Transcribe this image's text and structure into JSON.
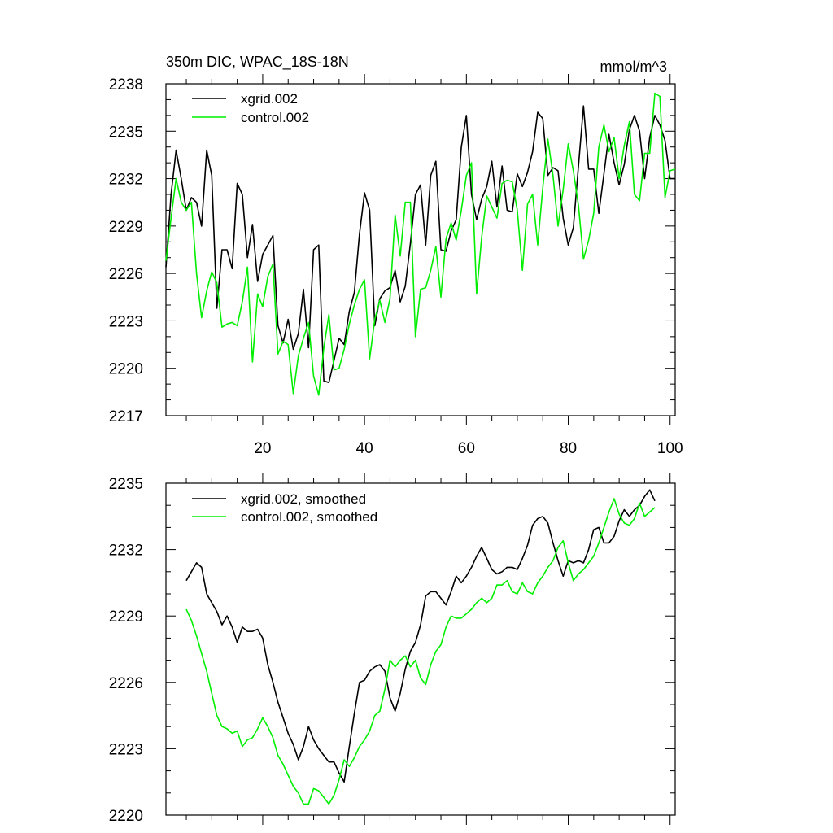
{
  "title": "350m DIC, WPAC_18S-18N",
  "units": "mmol/m^3",
  "colors": {
    "black": "#000000",
    "green": "#00ee00"
  },
  "chart_data": [
    {
      "type": "line",
      "title": "350m DIC, WPAC_18S-18N",
      "xlabel": "",
      "ylabel": "",
      "xlim": [
        1,
        101
      ],
      "ylim": [
        2217,
        2238
      ],
      "xticks": [
        20,
        40,
        60,
        80,
        100
      ],
      "xtick_labels": [
        "20",
        "40",
        "60",
        "80",
        "100"
      ],
      "yticks": [
        2217,
        2220,
        2223,
        2226,
        2229,
        2232,
        2235,
        2238
      ],
      "ytick_labels": [
        "2217",
        "2220",
        "2223",
        "2226",
        "2229",
        "2232",
        "2235",
        "2238"
      ],
      "legend_position": "top-left",
      "x": [
        1,
        2,
        3,
        4,
        5,
        6,
        7,
        8,
        9,
        10,
        11,
        12,
        13,
        14,
        15,
        16,
        17,
        18,
        19,
        20,
        21,
        22,
        23,
        24,
        25,
        26,
        27,
        28,
        29,
        30,
        31,
        32,
        33,
        34,
        35,
        36,
        37,
        38,
        39,
        40,
        41,
        42,
        43,
        44,
        45,
        46,
        47,
        48,
        49,
        50,
        51,
        52,
        53,
        54,
        55,
        56,
        57,
        58,
        59,
        60,
        61,
        62,
        63,
        64,
        65,
        66,
        67,
        68,
        69,
        70,
        71,
        72,
        73,
        74,
        75,
        76,
        77,
        78,
        79,
        80,
        81,
        82,
        83,
        84,
        85,
        86,
        87,
        88,
        89,
        90,
        91,
        92,
        93,
        94,
        95,
        96,
        97,
        98,
        99,
        100,
        101
      ],
      "series": [
        {
          "name": "xgrid.002",
          "color": "#000000",
          "values": [
            2226.4,
            2231.0,
            2233.8,
            2232.0,
            2230.0,
            2230.8,
            2230.5,
            2229.0,
            2233.8,
            2232.2,
            2223.8,
            2227.5,
            2227.5,
            2226.3,
            2231.7,
            2231.0,
            2227.0,
            2229.1,
            2225.5,
            2227.2,
            2227.8,
            2228.4,
            2222.7,
            2221.6,
            2223.1,
            2221.2,
            2222.2,
            2225.0,
            2221.3,
            2227.5,
            2227.8,
            2219.2,
            2219.1,
            2220.5,
            2221.9,
            2221.5,
            2223.6,
            2224.8,
            2228.5,
            2231.1,
            2230.0,
            2222.7,
            2224.4,
            2224.9,
            2225.1,
            2226.2,
            2224.2,
            2225.2,
            2227.9,
            2231.0,
            2231.6,
            2227.8,
            2232.2,
            2233.1,
            2227.5,
            2227.4,
            2228.7,
            2229.4,
            2234.0,
            2236.0,
            2231.0,
            2229.4,
            2230.7,
            2231.5,
            2233.1,
            2230.2,
            2232.8,
            2230.0,
            2229.9,
            2232.3,
            2231.5,
            2232.4,
            2233.7,
            2236.2,
            2235.8,
            2232.2,
            2232.7,
            2232.5,
            2229.5,
            2227.8,
            2228.9,
            2232.8,
            2236.6,
            2232.6,
            2232.6,
            2229.8,
            2232.3,
            2234.8,
            2233.0,
            2231.6,
            2232.9,
            2235.1,
            2236.0,
            2235.0,
            2232.0,
            2234.6,
            2236.0,
            2235.4,
            2234.4,
            2232.0,
            2232.0
          ]
        },
        {
          "name": "control.002",
          "color": "#00ee00",
          "values": [
            2226.8,
            2229.5,
            2232.0,
            2230.5,
            2230.0,
            2230.5,
            2226.0,
            2223.2,
            2224.9,
            2226.1,
            2225.4,
            2222.6,
            2222.8,
            2222.9,
            2222.7,
            2224.2,
            2226.4,
            2220.4,
            2224.7,
            2223.9,
            2225.8,
            2226.6,
            2220.9,
            2221.7,
            2221.5,
            2218.4,
            2220.8,
            2221.9,
            2222.9,
            2219.5,
            2218.3,
            2221.3,
            2223.4,
            2219.9,
            2220.0,
            2221.2,
            2222.8,
            2224.0,
            2225.0,
            2225.6,
            2220.6,
            2223.1,
            2224.3,
            2222.9,
            2224.4,
            2229.7,
            2227.1,
            2230.5,
            2230.5,
            2222.0,
            2225.0,
            2225.1,
            2226.2,
            2227.7,
            2224.5,
            2228.2,
            2229.2,
            2228.1,
            2230.0,
            2232.2,
            2233.0,
            2224.7,
            2228.3,
            2230.9,
            2230.2,
            2229.5,
            2231.7,
            2231.9,
            2231.8,
            2230.0,
            2226.2,
            2230.4,
            2231.0,
            2227.8,
            2231.4,
            2234.5,
            2232.2,
            2229.0,
            2231.3,
            2234.2,
            2232.5,
            2230.3,
            2226.9,
            2228.1,
            2229.8,
            2234.0,
            2235.4,
            2233.7,
            2234.6,
            2232.0,
            2234.1,
            2235.6,
            2231.0,
            2230.6,
            2233.6,
            2233.6,
            2237.4,
            2237.2,
            2230.8,
            2232.5,
            2232.6
          ]
        }
      ]
    },
    {
      "type": "line",
      "title": "",
      "xlabel": "",
      "ylabel": "",
      "xlim": [
        1,
        101
      ],
      "ylim": [
        2220,
        2235
      ],
      "xticks": [
        20,
        40,
        60,
        80,
        100
      ],
      "xtick_labels": [],
      "yticks": [
        2220,
        2223,
        2226,
        2229,
        2232,
        2235
      ],
      "ytick_labels": [
        "2220",
        "2223",
        "2226",
        "2229",
        "2232",
        "2235"
      ],
      "legend_position": "top-left",
      "x": [
        5,
        6,
        7,
        8,
        9,
        10,
        11,
        12,
        13,
        14,
        15,
        16,
        17,
        18,
        19,
        20,
        21,
        22,
        23,
        24,
        25,
        26,
        27,
        28,
        29,
        30,
        31,
        32,
        33,
        34,
        35,
        36,
        37,
        38,
        39,
        40,
        41,
        42,
        43,
        44,
        45,
        46,
        47,
        48,
        49,
        50,
        51,
        52,
        53,
        54,
        55,
        56,
        57,
        58,
        59,
        60,
        61,
        62,
        63,
        64,
        65,
        66,
        67,
        68,
        69,
        70,
        71,
        72,
        73,
        74,
        75,
        76,
        77,
        78,
        79,
        80,
        81,
        82,
        83,
        84,
        85,
        86,
        87,
        88,
        89,
        90,
        91,
        92,
        93,
        94,
        95,
        96,
        97
      ],
      "series": [
        {
          "name": "xgrid.002, smoothed",
          "color": "#000000",
          "values": [
            2230.6,
            2231.0,
            2231.4,
            2231.2,
            2230.0,
            2229.6,
            2229.2,
            2228.6,
            2229.0,
            2228.5,
            2227.8,
            2228.5,
            2228.3,
            2228.3,
            2228.4,
            2228.0,
            2226.8,
            2226.0,
            2225.1,
            2224.4,
            2223.7,
            2223.2,
            2222.5,
            2223.1,
            2224.0,
            2223.4,
            2223.0,
            2222.7,
            2222.4,
            2222.4,
            2221.9,
            2221.5,
            2223.1,
            2224.6,
            2226.0,
            2226.1,
            2226.5,
            2226.7,
            2226.8,
            2226.5,
            2225.3,
            2224.7,
            2225.5,
            2226.6,
            2227.4,
            2227.8,
            2228.6,
            2229.9,
            2230.1,
            2230.1,
            2229.8,
            2229.5,
            2230.1,
            2230.8,
            2230.5,
            2230.8,
            2231.2,
            2231.7,
            2232.1,
            2231.6,
            2231.1,
            2230.9,
            2231.0,
            2231.2,
            2231.2,
            2231.1,
            2231.6,
            2232.2,
            2233.1,
            2233.4,
            2233.5,
            2233.2,
            2232.3,
            2231.5,
            2230.8,
            2231.5,
            2231.4,
            2231.5,
            2231.4,
            2232.0,
            2232.9,
            2233.0,
            2232.3,
            2232.3,
            2232.6,
            2233.3,
            2233.8,
            2233.5,
            2233.8,
            2234.0,
            2234.4,
            2234.7,
            2234.2
          ]
        },
        {
          "name": "control.002, smoothed",
          "color": "#00ee00",
          "values": [
            2229.3,
            2228.8,
            2228.1,
            2227.3,
            2226.5,
            2225.5,
            2224.5,
            2224.0,
            2223.9,
            2223.7,
            2223.8,
            2223.1,
            2223.4,
            2223.5,
            2223.9,
            2224.4,
            2224.0,
            2223.5,
            2222.7,
            2222.3,
            2221.8,
            2221.3,
            2221.0,
            2220.5,
            2220.5,
            2221.2,
            2221.1,
            2220.8,
            2220.5,
            2220.9,
            2221.6,
            2222.5,
            2222.2,
            2222.6,
            2223.1,
            2223.4,
            2223.8,
            2224.5,
            2224.7,
            2225.7,
            2227.0,
            2226.7,
            2227.0,
            2227.2,
            2226.7,
            2227.0,
            2226.2,
            2225.9,
            2226.8,
            2227.4,
            2227.7,
            2228.5,
            2229.0,
            2228.9,
            2228.9,
            2229.1,
            2229.3,
            2229.6,
            2229.8,
            2229.6,
            2229.8,
            2230.4,
            2230.4,
            2230.6,
            2230.1,
            2230.0,
            2230.5,
            2230.1,
            2230.0,
            2230.5,
            2230.8,
            2231.2,
            2231.5,
            2232.1,
            2232.4,
            2231.4,
            2230.6,
            2230.9,
            2231.1,
            2231.4,
            2231.7,
            2232.3,
            2233.0,
            2233.7,
            2234.3,
            2233.6,
            2233.2,
            2233.1,
            2233.4,
            2234.1,
            2233.5,
            2233.7,
            2233.9
          ]
        }
      ]
    }
  ]
}
